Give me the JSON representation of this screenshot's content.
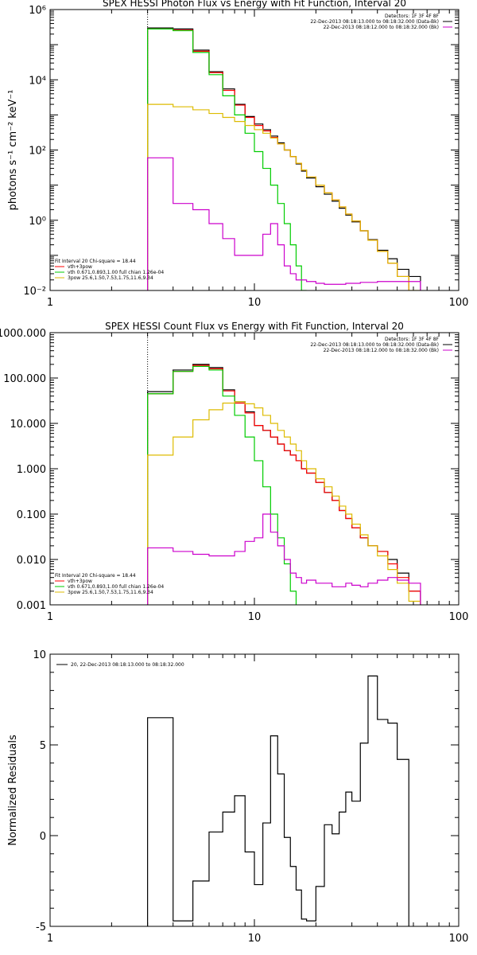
{
  "chart_data": [
    {
      "type": "line",
      "title": "SPEX HESSI Photon Flux vs Energy with Fit Function, Interval 20",
      "xlabel": "",
      "ylabel": "photons s⁻¹ cm⁻² keV⁻¹",
      "xscale": "log",
      "yscale": "log",
      "xlim": [
        1,
        100
      ],
      "ylim": [
        0.01,
        1000000
      ],
      "x_ticks": [
        {
          "value": 1,
          "label": "1"
        },
        {
          "value": 10,
          "label": "10"
        },
        {
          "value": 100,
          "label": "100"
        }
      ],
      "y_ticks": [
        {
          "value": 0.01,
          "label": "10⁻²"
        },
        {
          "value": 1,
          "label": "10⁰"
        },
        {
          "value": 100,
          "label": "10²"
        },
        {
          "value": 10000,
          "label": "10⁴"
        },
        {
          "value": 1000000,
          "label": "10⁶"
        }
      ],
      "vline": {
        "x": 3,
        "color": "#000000",
        "style": "dotted"
      },
      "header": [
        "Detectors: 1F 3F 4F 8F",
        "22-Dec-2013 08:18:13.000 to 08:18:32.000 (Data-Bk)",
        "22-Dec-2013 08:18:12.000 to 08:18:32.000 (Bk)"
      ],
      "header_colors": [
        "#000000",
        "#000000",
        "#cc00cc"
      ],
      "legend": [
        {
          "label": "Fit Interval 20   Chi-square = 18.44",
          "color": ""
        },
        {
          "label": "vth+3pow",
          "color": "#ff0000"
        },
        {
          "label": "vth 0.671,0.893,1.00  full chian 1.26e-04",
          "color": "#00cc00"
        },
        {
          "label": "3pow 25.6,1.50,7.53,1.75,11.6,9.34",
          "color": "#ddbb00"
        }
      ],
      "legend_position": "bottom-left",
      "energy_edges": [
        3,
        4,
        5,
        6,
        7,
        8,
        9,
        10,
        11,
        12,
        13,
        14,
        15,
        16,
        17,
        18,
        20,
        22,
        24,
        26,
        28,
        30,
        33,
        36,
        40,
        45,
        50,
        57,
        65
      ],
      "series": [
        {
          "name": "Data-Bk",
          "color": "#000000",
          "values": [
            300000,
            280000,
            70000,
            17000,
            5500,
            2000,
            900,
            550,
            380,
            250,
            160,
            100,
            65,
            40,
            25,
            16,
            9,
            5.5,
            3.5,
            2.2,
            1.4,
            0.9,
            0.5,
            0.28,
            0.14,
            0.08,
            0.04,
            0.025
          ]
        },
        {
          "name": "vth+3pow",
          "color": "#ff0000",
          "values": [
            280000,
            260000,
            65000,
            16000,
            5000,
            1900,
            850,
            500,
            350,
            230,
            150,
            100,
            65,
            42,
            27,
            17,
            10,
            6,
            3.8,
            2.4,
            1.5,
            0.95,
            0.5,
            0.27,
            0.13,
            0.06,
            0.025
          ]
        },
        {
          "name": "vth",
          "color": "#00cc00",
          "values": [
            280000,
            250000,
            60000,
            14000,
            3500,
            1000,
            300,
            90,
            30,
            10,
            3,
            0.8,
            0.2,
            0.05,
            0.01
          ]
        },
        {
          "name": "3pow",
          "color": "#ddbb00",
          "values": [
            2000,
            1700,
            1400,
            1100,
            850,
            650,
            500,
            380,
            300,
            220,
            150,
            100,
            65,
            42,
            27,
            17,
            10,
            6,
            3.8,
            2.4,
            1.5,
            0.95,
            0.5,
            0.27,
            0.13,
            0.06,
            0.025,
            0.01
          ]
        },
        {
          "name": "Bk",
          "color": "#cc00cc",
          "values": [
            60,
            3,
            2,
            0.8,
            0.3,
            0.1,
            0.1,
            0.1,
            0.4,
            0.8,
            0.2,
            0.05,
            0.03,
            0.02,
            0.02,
            0.018,
            0.016,
            0.015,
            0.015,
            0.015,
            0.016,
            0.016,
            0.017,
            0.017,
            0.018,
            0.018,
            0.018,
            0.018
          ]
        }
      ]
    },
    {
      "type": "line",
      "title": "SPEX HESSI Count Flux vs Energy with Fit Function, Interval 20",
      "xlabel": "",
      "ylabel": "",
      "xscale": "log",
      "yscale": "log",
      "xlim": [
        1,
        100
      ],
      "ylim": [
        0.001,
        1000
      ],
      "x_ticks": [
        {
          "value": 1,
          "label": "1"
        },
        {
          "value": 10,
          "label": "10"
        },
        {
          "value": 100,
          "label": "100"
        }
      ],
      "y_ticks": [
        {
          "value": 0.001,
          "label": "0.001"
        },
        {
          "value": 0.01,
          "label": "0.010"
        },
        {
          "value": 0.1,
          "label": "0.100"
        },
        {
          "value": 1,
          "label": "1.000"
        },
        {
          "value": 10,
          "label": "10.000"
        },
        {
          "value": 100,
          "label": "100.000"
        },
        {
          "value": 1000,
          "label": "1000.000"
        }
      ],
      "vline": {
        "x": 3,
        "color": "#000000",
        "style": "dotted"
      },
      "header": [
        "Detectors: 1F 3F 4F 8F",
        "22-Dec-2013 08:18:13.000 to 08:18:32.000 (Data-Bk)",
        "22-Dec-2013 08:18:12.000 to 08:18:32.000 (Bk)"
      ],
      "header_colors": [
        "#000000",
        "#000000",
        "#cc00cc"
      ],
      "legend": [
        {
          "label": "Fit Interval 20   Chi-square = 18.44",
          "color": ""
        },
        {
          "label": "vth+3pow",
          "color": "#ff0000"
        },
        {
          "label": "vth 0.671,0.893,1.00  full chian 1.26e-04",
          "color": "#00cc00"
        },
        {
          "label": "3pow 25.6,1.50,7.53,1.75,11.6,9.34",
          "color": "#ddbb00"
        }
      ],
      "legend_position": "bottom-left",
      "energy_edges": [
        3,
        4,
        5,
        6,
        7,
        8,
        9,
        10,
        11,
        12,
        13,
        14,
        15,
        16,
        17,
        18,
        20,
        22,
        24,
        26,
        28,
        30,
        33,
        36,
        40,
        45,
        50,
        57,
        65
      ],
      "series": [
        {
          "name": "Data-Bk",
          "color": "#000000",
          "values": [
            50,
            150,
            200,
            170,
            55,
            30,
            18,
            9,
            7,
            5,
            3.5,
            2.5,
            2,
            1.5,
            1,
            0.8,
            0.5,
            0.3,
            0.2,
            0.12,
            0.08,
            0.05,
            0.03,
            0.02,
            0.015,
            0.01,
            0.005,
            0.002
          ]
        },
        {
          "name": "vth+3pow",
          "color": "#ff0000",
          "values": [
            45,
            140,
            190,
            160,
            52,
            28,
            17,
            9,
            7,
            5,
            3.5,
            2.5,
            2,
            1.5,
            1,
            0.8,
            0.5,
            0.3,
            0.2,
            0.12,
            0.08,
            0.05,
            0.03,
            0.02,
            0.015,
            0.008,
            0.004,
            0.002
          ]
        },
        {
          "name": "vth",
          "color": "#00cc00",
          "values": [
            45,
            140,
            180,
            150,
            40,
            15,
            5,
            1.5,
            0.4,
            0.1,
            0.03,
            0.008,
            0.002
          ]
        },
        {
          "name": "3pow",
          "color": "#ddbb00",
          "values": [
            2,
            5,
            12,
            20,
            28,
            30,
            27,
            22,
            15,
            10,
            7,
            5,
            3.5,
            2.5,
            1.5,
            1,
            0.6,
            0.4,
            0.25,
            0.15,
            0.1,
            0.06,
            0.035,
            0.02,
            0.012,
            0.006,
            0.003,
            0.0012
          ]
        },
        {
          "name": "Bk",
          "color": "#cc00cc",
          "values": [
            0.018,
            0.015,
            0.013,
            0.012,
            0.012,
            0.015,
            0.025,
            0.03,
            0.1,
            0.04,
            0.02,
            0.01,
            0.005,
            0.004,
            0.003,
            0.0035,
            0.003,
            0.003,
            0.0025,
            0.0025,
            0.003,
            0.0027,
            0.0025,
            0.003,
            0.0035,
            0.004,
            0.0035,
            0.003
          ]
        }
      ]
    },
    {
      "type": "line",
      "title": "",
      "xlabel": "",
      "ylabel": "Normalized Residuals",
      "xscale": "log",
      "yscale": "linear",
      "xlim": [
        1,
        100
      ],
      "ylim": [
        -5,
        10
      ],
      "x_ticks": [
        {
          "value": 1,
          "label": "1"
        },
        {
          "value": 10,
          "label": "10"
        },
        {
          "value": 100,
          "label": "100"
        }
      ],
      "y_ticks": [
        {
          "value": -5,
          "label": "-5"
        },
        {
          "value": 0,
          "label": "0"
        },
        {
          "value": 5,
          "label": "5"
        },
        {
          "value": 10,
          "label": "10"
        }
      ],
      "legend": [
        {
          "label": "20, 22-Dec-2013 08:18:13.000 to 08:18:32.000",
          "color": "#000000"
        }
      ],
      "legend_position": "top-left",
      "energy_edges": [
        3,
        4,
        5,
        6,
        7,
        8,
        9,
        10,
        11,
        12,
        13,
        14,
        15,
        16,
        17,
        18,
        20,
        22,
        24,
        26,
        28,
        30,
        33,
        36,
        40,
        45,
        50,
        57,
        65
      ],
      "series": [
        {
          "name": "Residuals",
          "color": "#000000",
          "values": [
            6.5,
            -4.7,
            -2.5,
            0.2,
            1.3,
            2.2,
            -0.9,
            -2.7,
            0.7,
            5.5,
            3.4,
            -0.1,
            -1.7,
            -3.0,
            -4.6,
            -4.7,
            -2.8,
            0.6,
            0.1,
            1.3,
            2.4,
            1.9,
            5.1,
            8.8,
            6.4,
            6.2,
            4.2
          ]
        }
      ]
    }
  ]
}
